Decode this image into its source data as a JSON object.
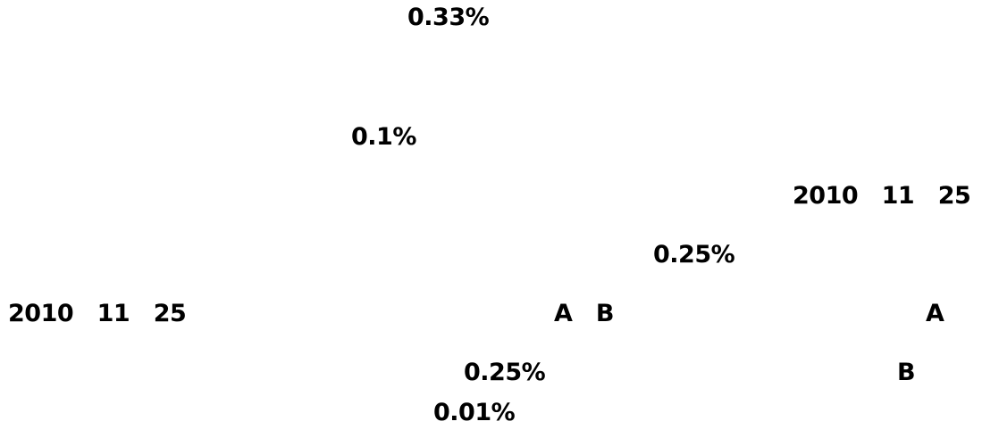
{
  "document": {
    "rows": [
      {
        "text": "0.33%"
      },
      {
        "text": "0.1%"
      },
      {
        "text": "2010　11　25"
      },
      {
        "text": "0.25%"
      },
      {
        "text": "2010　11　25"
      },
      {
        "text": "A　B"
      },
      {
        "text": "A"
      },
      {
        "text": "0.25%"
      },
      {
        "text": "B"
      },
      {
        "text": "0.01%"
      }
    ]
  }
}
